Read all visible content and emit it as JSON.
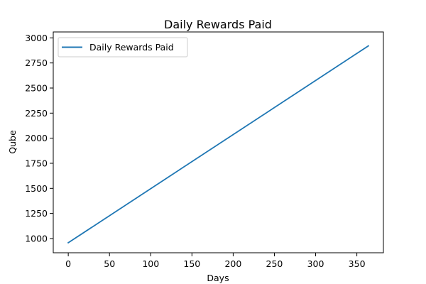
{
  "chart_data": {
    "type": "line",
    "title": "Daily Rewards Paid",
    "xlabel": "Days",
    "ylabel": "Qube",
    "xlim": [
      -18.2,
      382.2
    ],
    "ylim": [
      858.2,
      3059.0
    ],
    "xticks": [
      0,
      50,
      100,
      150,
      200,
      250,
      300,
      350
    ],
    "yticks": [
      1000,
      1250,
      1500,
      1750,
      2000,
      2250,
      2500,
      2750,
      3000
    ],
    "grid": false,
    "legend": "upper-left",
    "series": [
      {
        "name": "Daily Rewards Paid",
        "color": "#1f77b4",
        "x": [
          0,
          364
        ],
        "y": [
          958,
          2920
        ]
      }
    ]
  }
}
